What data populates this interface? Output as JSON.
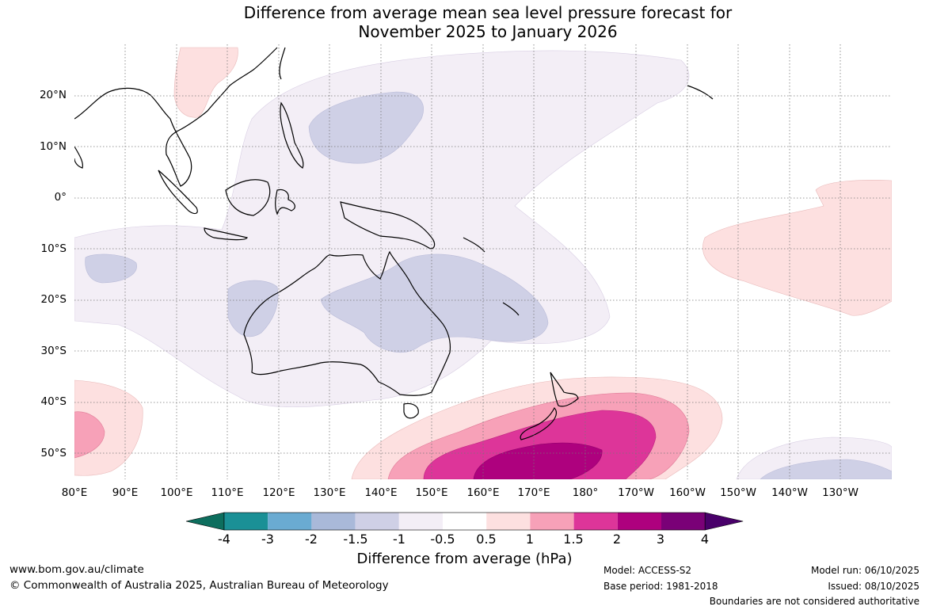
{
  "title": {
    "line1": "Difference from average mean sea level pressure forecast for",
    "line2": "November 2025 to January 2026"
  },
  "map": {
    "lat_labels": [
      "20°N",
      "10°N",
      "0°",
      "10°S",
      "20°S",
      "30°S",
      "40°S",
      "50°S"
    ],
    "lon_labels": [
      "80°E",
      "90°E",
      "100°E",
      "110°E",
      "120°E",
      "130°E",
      "140°E",
      "150°E",
      "160°E",
      "170°E",
      "180°",
      "170°W",
      "160°W",
      "150°W",
      "140°W",
      "130°W"
    ],
    "region": "Australia, Indian Ocean and western Pacific"
  },
  "colorbar": {
    "ticks": [
      "-4",
      "-3",
      "-2",
      "-1.5",
      "-1",
      "-0.5",
      "0.5",
      "1",
      "1.5",
      "2",
      "3",
      "4"
    ],
    "colors": [
      "#0d6e5e",
      "#1a9096",
      "#6aabd2",
      "#a9b9d9",
      "#cfd0e6",
      "#f3eef6",
      "#ffffff",
      "#fde0e0",
      "#f7a1b8",
      "#dd3599",
      "#ae017e",
      "#7a0177",
      "#49006a"
    ],
    "title": "Difference from average (hPa)"
  },
  "footer": {
    "website": "www.bom.gov.au/climate",
    "copyright": "© Commonwealth of Australia 2025, Australian Bureau of Meteorology",
    "model": "Model: ACCESS-S2",
    "base_period": "Base period: 1981-2018",
    "model_run": "Model run: 06/10/2025",
    "issued": "Issued: 08/10/2025",
    "boundaries": "Boundaries are not considered authoritative"
  }
}
